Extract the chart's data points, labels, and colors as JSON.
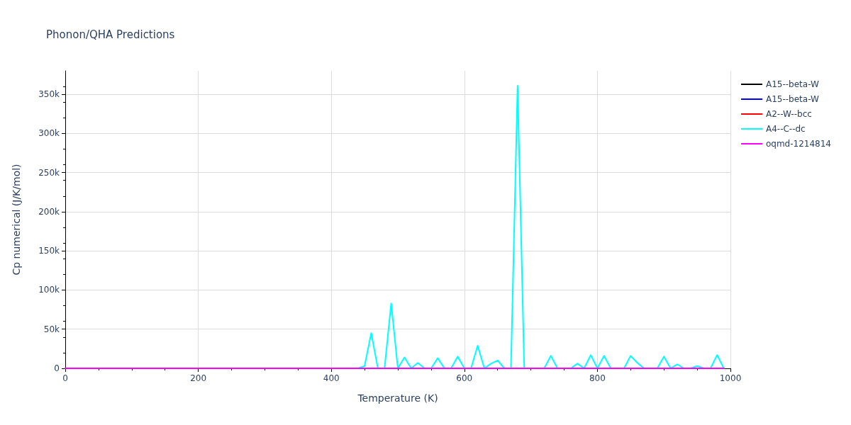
{
  "chart_data": {
    "type": "line",
    "title": "Phonon/QHA Predictions",
    "xlabel": "Temperature (K)",
    "ylabel": "Cp numerical (J/K/mol)",
    "x": [
      0,
      10,
      20,
      30,
      40,
      50,
      60,
      70,
      80,
      90,
      100,
      110,
      120,
      130,
      140,
      150,
      160,
      170,
      180,
      190,
      200,
      210,
      220,
      230,
      240,
      250,
      260,
      270,
      280,
      290,
      300,
      310,
      320,
      330,
      340,
      350,
      360,
      370,
      380,
      390,
      400,
      410,
      420,
      430,
      440,
      450,
      460,
      470,
      480,
      490,
      500,
      510,
      520,
      530,
      540,
      550,
      560,
      570,
      580,
      590,
      600,
      610,
      620,
      630,
      640,
      650,
      660,
      670,
      680,
      690,
      700,
      710,
      720,
      730,
      740,
      750,
      760,
      770,
      780,
      790,
      800,
      810,
      820,
      830,
      840,
      850,
      860,
      870,
      880,
      890,
      900,
      910,
      920,
      930,
      940,
      950,
      960,
      970,
      980,
      990
    ],
    "series": [
      {
        "name": "A15--beta-W",
        "color": "#000000",
        "values": [
          null,
          null,
          null,
          null,
          null,
          null,
          null,
          null,
          null,
          null,
          null,
          null,
          null,
          null,
          null,
          null,
          null,
          null,
          null,
          null,
          null,
          null,
          null,
          null,
          null,
          null,
          null,
          null,
          null,
          null,
          null,
          null,
          null,
          null,
          null,
          null,
          null,
          null,
          null,
          null,
          null,
          null,
          null,
          null,
          null,
          null,
          null,
          null,
          null,
          null,
          null,
          null,
          null,
          null,
          null,
          null,
          null,
          null,
          null,
          null,
          null,
          null,
          null,
          null,
          null,
          null,
          null,
          null,
          null,
          null,
          null,
          null,
          null,
          null,
          null,
          null,
          null,
          null,
          null,
          null,
          null,
          null,
          null,
          null,
          null,
          null,
          null,
          null,
          null,
          null,
          null,
          null,
          null,
          null,
          null,
          null,
          null,
          null,
          null,
          null
        ]
      },
      {
        "name": "A15--beta-W",
        "color": "#0000ff",
        "values": [
          null,
          null,
          null,
          null,
          null,
          null,
          null,
          null,
          null,
          null,
          null,
          null,
          null,
          null,
          null,
          null,
          null,
          null,
          null,
          null,
          null,
          null,
          null,
          null,
          null,
          null,
          null,
          null,
          null,
          null,
          null,
          null,
          null,
          null,
          null,
          null,
          null,
          null,
          null,
          null,
          null,
          null,
          null,
          null,
          null,
          null,
          null,
          null,
          null,
          null,
          null,
          null,
          null,
          null,
          null,
          null,
          null,
          null,
          null,
          null,
          null,
          null,
          null,
          null,
          null,
          null,
          null,
          null,
          null,
          null,
          null,
          null,
          null,
          null,
          null,
          null,
          null,
          null,
          null,
          null,
          null,
          null,
          null,
          null,
          null,
          null,
          null,
          null,
          null,
          null,
          null,
          null,
          null,
          null,
          null,
          null,
          null,
          null,
          null,
          null
        ]
      },
      {
        "name": "A2--W--bcc",
        "color": "#ff0000",
        "values": [
          null,
          null,
          null,
          null,
          null,
          null,
          null,
          null,
          null,
          null,
          null,
          null,
          null,
          null,
          null,
          null,
          null,
          null,
          null,
          null,
          null,
          null,
          null,
          null,
          null,
          null,
          null,
          null,
          null,
          null,
          null,
          null,
          null,
          null,
          null,
          null,
          null,
          null,
          null,
          null,
          null,
          null,
          null,
          null,
          null,
          null,
          null,
          null,
          null,
          null,
          null,
          null,
          null,
          null,
          null,
          null,
          null,
          null,
          null,
          null,
          null,
          null,
          null,
          null,
          null,
          null,
          null,
          null,
          null,
          null,
          null,
          null,
          null,
          null,
          null,
          null,
          null,
          null,
          null,
          null,
          null,
          null,
          null,
          null,
          null,
          null,
          null,
          null,
          null,
          null,
          null,
          null,
          null,
          null,
          null,
          null,
          null,
          null,
          null,
          null
        ]
      },
      {
        "name": "A4--C--dc",
        "color": "#00ffff",
        "values": [
          null,
          null,
          null,
          null,
          null,
          null,
          null,
          null,
          null,
          null,
          null,
          null,
          null,
          null,
          null,
          null,
          null,
          null,
          null,
          null,
          null,
          null,
          null,
          null,
          null,
          null,
          null,
          null,
          null,
          null,
          null,
          null,
          null,
          null,
          null,
          null,
          null,
          null,
          null,
          null,
          null,
          null,
          null,
          null,
          0,
          3000,
          45000,
          0,
          0,
          83000,
          0,
          14000,
          0,
          7000,
          0,
          0,
          13000,
          0,
          0,
          15000,
          0,
          0,
          29000,
          0,
          6000,
          10000,
          0,
          0,
          361000,
          0,
          0,
          0,
          0,
          16000,
          0,
          0,
          0,
          6000,
          0,
          17000,
          0,
          16000,
          0,
          0,
          0,
          16000,
          7000,
          0,
          0,
          0,
          15000,
          0,
          5000,
          0,
          0,
          3000,
          0,
          0,
          17000,
          0
        ]
      },
      {
        "name": "oqmd-1214814",
        "color": "#ff00ff",
        "values": [
          0,
          0,
          0,
          0,
          0,
          0,
          0,
          0,
          0,
          0,
          0,
          0,
          0,
          0,
          0,
          0,
          0,
          0,
          0,
          0,
          0,
          0,
          0,
          0,
          0,
          0,
          0,
          0,
          0,
          0,
          0,
          0,
          0,
          0,
          0,
          0,
          0,
          0,
          0,
          0,
          0,
          0,
          0,
          0,
          0,
          0,
          0,
          0,
          0,
          0,
          0,
          0,
          0,
          0,
          0,
          0,
          0,
          0,
          0,
          0,
          0,
          0,
          0,
          0,
          0,
          0,
          0,
          0,
          0,
          0,
          0,
          0,
          0,
          0,
          0,
          0,
          0,
          0,
          0,
          0,
          0,
          0,
          0,
          0,
          0,
          0,
          0,
          0,
          0,
          0,
          0,
          0,
          0,
          0,
          0,
          0,
          0,
          0,
          0,
          0
        ]
      }
    ],
    "xlim": [
      0,
      1000
    ],
    "xticks": [
      0,
      200,
      400,
      600,
      800,
      1000
    ],
    "ylim": [
      0,
      380000
    ],
    "yticks": [
      0,
      {
        "value": 50000,
        "label": "50k"
      },
      {
        "value": 100000,
        "label": "100k"
      },
      {
        "value": 150000,
        "label": "150k"
      },
      {
        "value": 200000,
        "label": "200k"
      },
      {
        "value": 250000,
        "label": "250k"
      },
      {
        "value": 300000,
        "label": "300k"
      },
      {
        "value": 350000,
        "label": "350k"
      }
    ],
    "grid": true,
    "legend": "top right",
    "marker": "none",
    "line_style": "solid"
  }
}
